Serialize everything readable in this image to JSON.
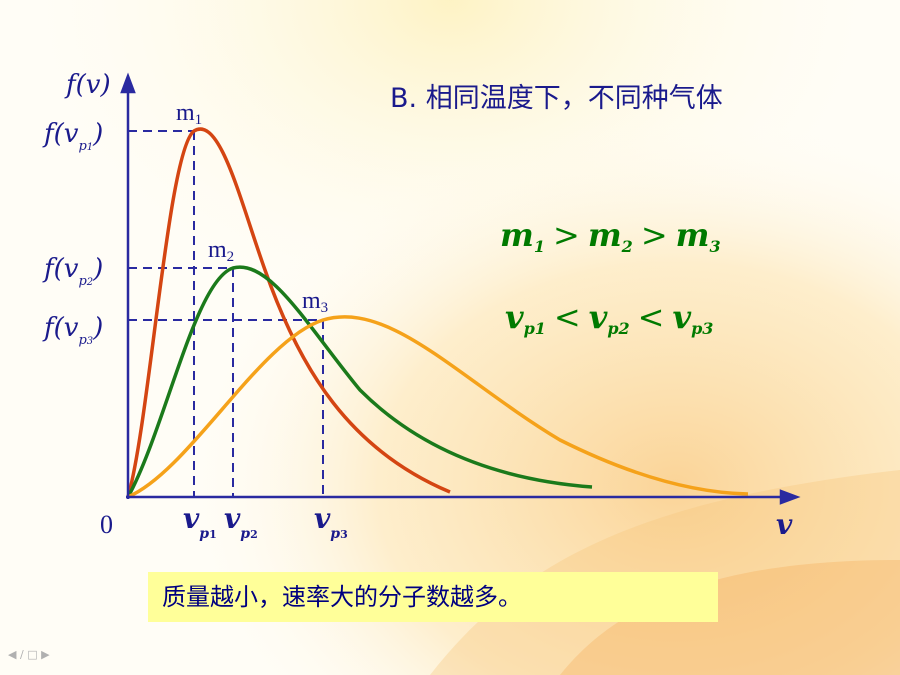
{
  "title": "B. 相同温度下，不同种气体",
  "y_axis": {
    "f": "f",
    "var": "v"
  },
  "x_axis_label": "v",
  "origin": "0",
  "y_ticks": [
    {
      "sub": "1"
    },
    {
      "sub": "2"
    },
    {
      "sub": "3"
    }
  ],
  "x_ticks": [
    {
      "base": "v",
      "sub1": "p",
      "sub2": "1"
    },
    {
      "base": "v",
      "sub1": "p",
      "sub2": "2"
    },
    {
      "base": "v",
      "sub1": "p",
      "sub2": "3"
    }
  ],
  "curves": [
    {
      "name": "m",
      "sub": "1",
      "color": "#d44512"
    },
    {
      "name": "m",
      "sub": "2",
      "color": "#1b7a1b"
    },
    {
      "name": "m",
      "sub": "3",
      "color": "#f5a21a"
    }
  ],
  "relation_mass": {
    "m": "m",
    "s1": "1",
    "s2": "2",
    "s3": "3",
    "op": ">"
  },
  "relation_speed": {
    "v": "v",
    "s1": "p1",
    "s2": "p2",
    "s3": "p3",
    "op": "<"
  },
  "note": "质量越小，速率大的分子数越多。",
  "colors": {
    "axis": "#2a2aa0",
    "text": "#1a1a8c",
    "relation": "#007a00",
    "note_bg": "#ffff99"
  }
}
